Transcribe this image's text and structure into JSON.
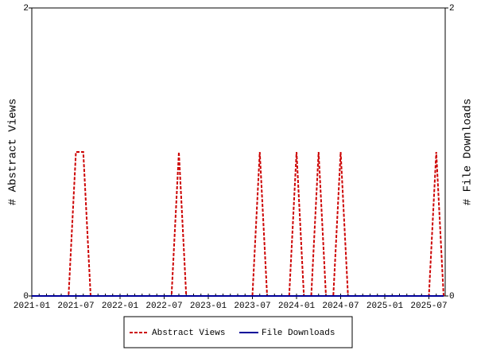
{
  "chart_data": {
    "type": "line",
    "y_label": "# Abstract Views",
    "y2_label": "# File Downloads",
    "x": [
      "2021-01",
      "2021-02",
      "2021-03",
      "2021-04",
      "2021-05",
      "2021-06",
      "2021-07",
      "2021-08",
      "2021-09",
      "2021-10",
      "2021-11",
      "2021-12",
      "2022-01",
      "2022-02",
      "2022-03",
      "2022-04",
      "2022-05",
      "2022-06",
      "2022-07",
      "2022-08",
      "2022-09",
      "2022-10",
      "2022-11",
      "2022-12",
      "2023-01",
      "2023-02",
      "2023-03",
      "2023-04",
      "2023-05",
      "2023-06",
      "2023-07",
      "2023-08",
      "2023-09",
      "2023-10",
      "2023-11",
      "2023-12",
      "2024-01",
      "2024-02",
      "2024-03",
      "2024-04",
      "2024-05",
      "2024-06",
      "2024-07",
      "2024-08",
      "2024-09",
      "2024-10",
      "2024-11",
      "2024-12",
      "2025-01",
      "2025-02",
      "2025-03",
      "2025-04",
      "2025-05",
      "2025-06",
      "2025-07",
      "2025-08",
      "2025-09"
    ],
    "xticks": [
      "2021-01",
      "2021-07",
      "2022-01",
      "2022-07",
      "2023-01",
      "2023-07",
      "2024-01",
      "2024-07",
      "2025-01",
      "2025-07"
    ],
    "series": [
      {
        "name": "Abstract Views",
        "color": "#cc0000",
        "dashed": true,
        "values": [
          0,
          0,
          0,
          0,
          0,
          0,
          1,
          1,
          0,
          0,
          0,
          0,
          0,
          0,
          0,
          0,
          0,
          0,
          0,
          0,
          1,
          0,
          0,
          0,
          0,
          0,
          0,
          0,
          0,
          0,
          0,
          1,
          0,
          0,
          0,
          0,
          1,
          0,
          0,
          1,
          0,
          0,
          1,
          0,
          0,
          0,
          0,
          0,
          0,
          0,
          0,
          0,
          0,
          0,
          0,
          1,
          0
        ]
      },
      {
        "name": "File Downloads",
        "color": "#000099",
        "dashed": false,
        "axis": "y2",
        "values": [
          0,
          0,
          0,
          0,
          0,
          0,
          0,
          0,
          0,
          0,
          0,
          0,
          0,
          0,
          0,
          0,
          0,
          0,
          0,
          0,
          0,
          0,
          0,
          0,
          0,
          0,
          0,
          0,
          0,
          0,
          0,
          0,
          0,
          0,
          0,
          0,
          0,
          0,
          0,
          0,
          0,
          0,
          0,
          0,
          0,
          0,
          0,
          0,
          0,
          0,
          0,
          0,
          0,
          0,
          0,
          0,
          0
        ]
      }
    ],
    "ylim": [
      0,
      2
    ],
    "yticks": [
      0,
      2
    ],
    "y2lim": [
      0,
      2
    ],
    "y2ticks": [
      0,
      2
    ]
  }
}
